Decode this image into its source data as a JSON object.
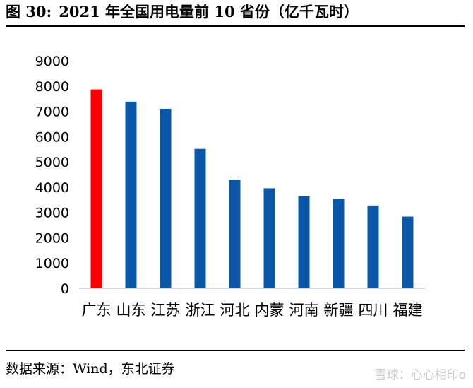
{
  "figure": {
    "label": "图 30:",
    "title": "2021 年全国用电量前 10 省份（亿千瓦时）"
  },
  "source": "数据来源：Wind，东北证券",
  "watermark": "雪球：心心相印o",
  "colors": {
    "highlight": "#ff0000",
    "bar": "#0a57a8",
    "axis": "#bfbfbf",
    "text": "#000000"
  },
  "chart_data": {
    "type": "bar",
    "title": "2021 年全国用电量前 10 省份（亿千瓦时）",
    "categories": [
      "广东",
      "山东",
      "江苏",
      "浙江",
      "河北",
      "内蒙",
      "河南",
      "新疆",
      "四川",
      "福建"
    ],
    "values": [
      7866,
      7383,
      7101,
      5514,
      4294,
      3957,
      3647,
      3545,
      3275,
      2836
    ],
    "ylim": [
      0,
      9000
    ],
    "yticks": [
      0,
      1000,
      2000,
      3000,
      4000,
      5000,
      6000,
      7000,
      8000,
      9000
    ],
    "highlight_index": 0,
    "grid": false,
    "legend": "none",
    "xlabel": "",
    "ylabel": ""
  }
}
